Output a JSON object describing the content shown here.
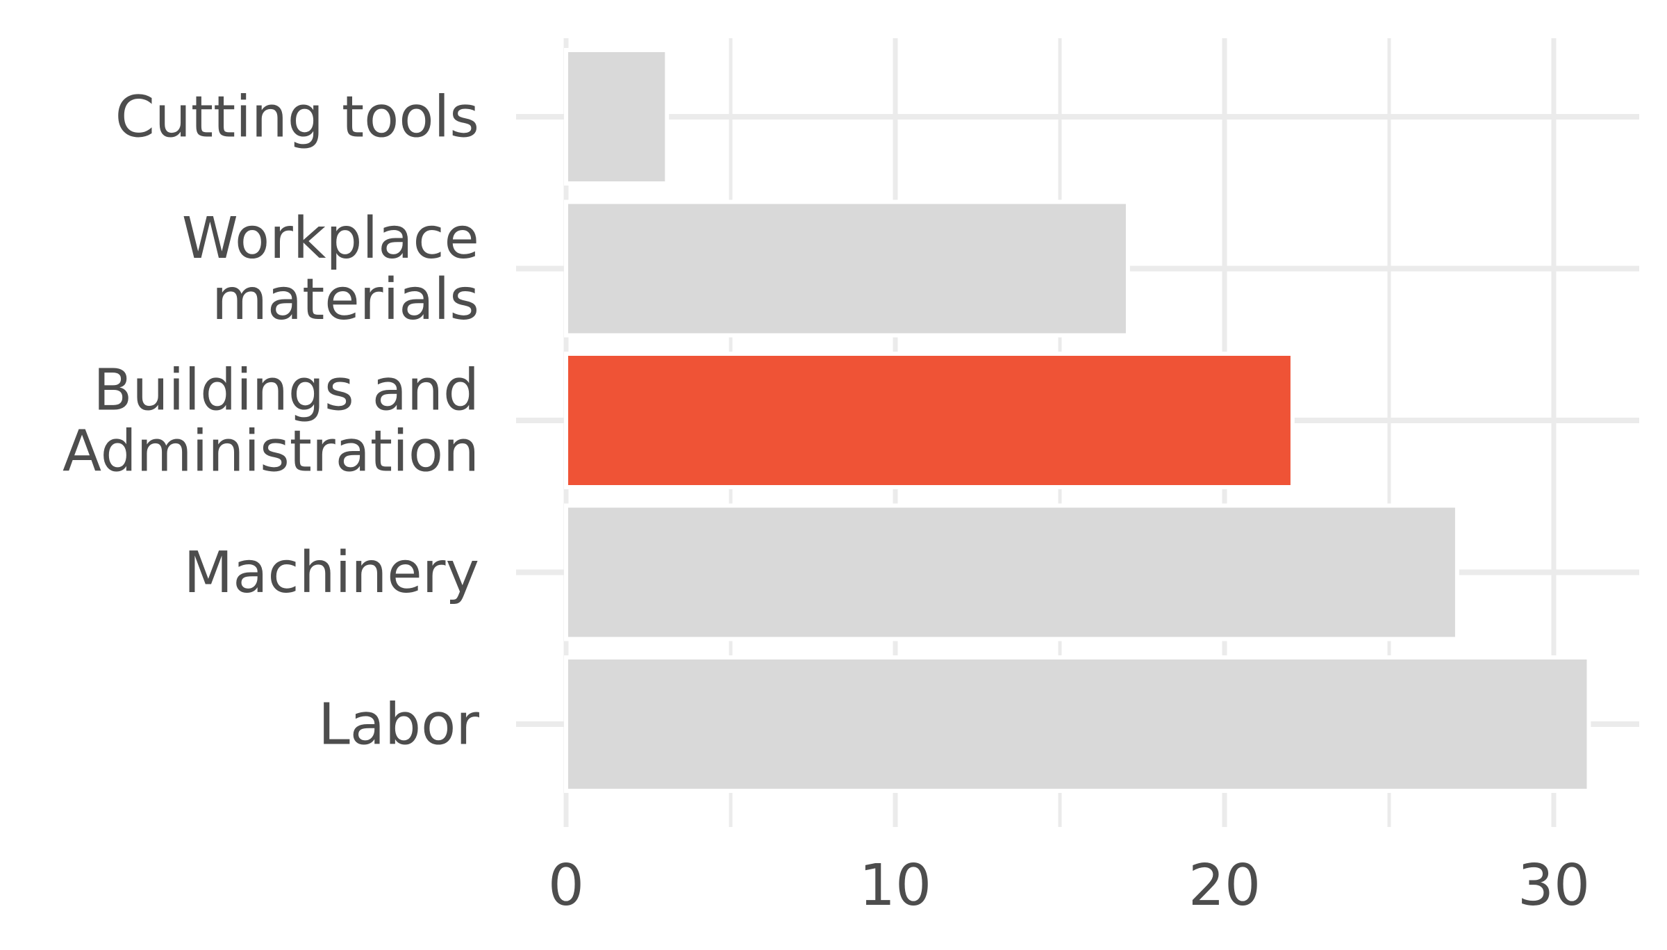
{
  "chart_data": {
    "type": "bar",
    "orientation": "horizontal",
    "categories": [
      [
        "Cutting tools"
      ],
      [
        "Workplace",
        "materials"
      ],
      [
        "Buildings and",
        "Administration"
      ],
      [
        "Machinery"
      ],
      [
        "Labor"
      ]
    ],
    "values": [
      3,
      17,
      22,
      27,
      31
    ],
    "highlight_index": 2,
    "colors": {
      "bar": "#d9d9d9",
      "highlight": "#ef5336",
      "grid": "#ebebeb",
      "text": "#4d4d4d"
    },
    "xlim": [
      0,
      33
    ],
    "xticks": [
      0,
      10,
      20,
      30
    ],
    "minor_xticks": [
      5,
      15,
      25
    ],
    "grid": true,
    "title": "",
    "xlabel": "",
    "ylabel": ""
  }
}
